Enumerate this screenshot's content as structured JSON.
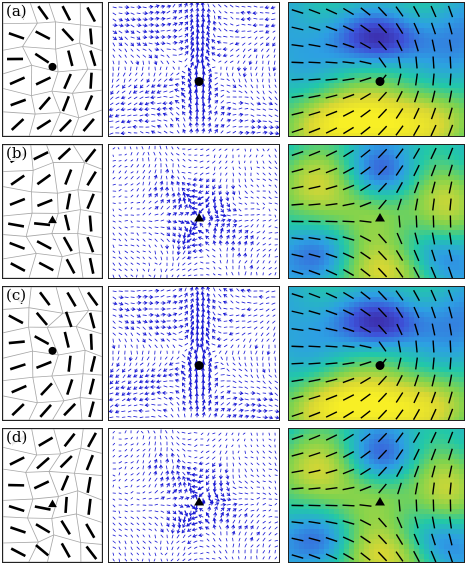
{
  "figure": {
    "rows": [
      {
        "label": "(a)",
        "defect": "circle",
        "field": "dipole"
      },
      {
        "label": "(b)",
        "defect": "triangle",
        "field": "trefoil"
      },
      {
        "label": "(c)",
        "defect": "circle",
        "field": "dipole"
      },
      {
        "label": "(d)",
        "defect": "triangle",
        "field": "trefoil"
      }
    ],
    "columns": [
      "cell-tessellation",
      "velocity-field",
      "orientation-colormap"
    ],
    "colors": {
      "cell_edge": "#a8a8a8",
      "cell_director": "#000000",
      "arrow": "#1a1ad4",
      "colormap": [
        "#3b1f9a",
        "#3d52d9",
        "#2d9fe3",
        "#22c8a8",
        "#7fd34e",
        "#d9d733",
        "#f8ef25"
      ]
    }
  }
}
